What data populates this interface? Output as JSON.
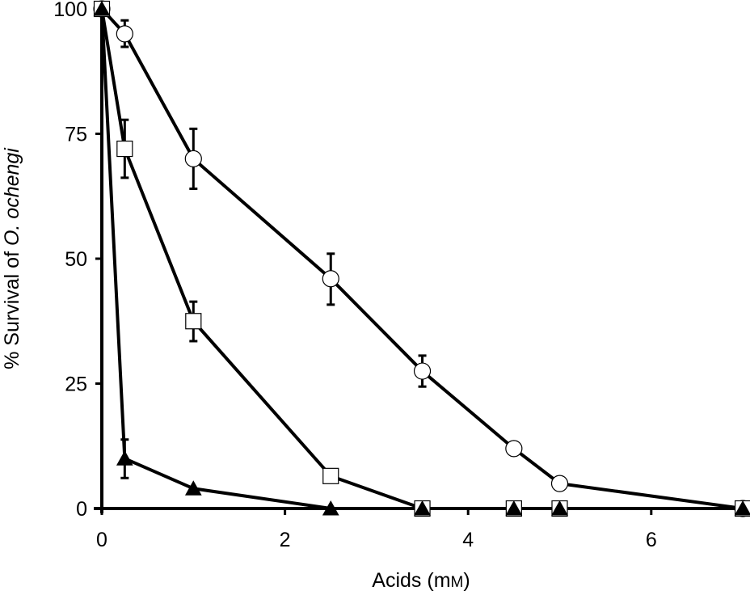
{
  "chart_data": {
    "type": "line",
    "title": "",
    "xlabel": "Acids (mM)",
    "xlabel_parts": {
      "prefix": "Acids (m",
      "smallcap": "M",
      "suffix": ")"
    },
    "ylabel": "% Survival of O. ochengi",
    "ylabel_parts": {
      "prefix": "% Survival of ",
      "italic": "O. ochengi"
    },
    "xlim": [
      0,
      7
    ],
    "ylim": [
      0,
      100
    ],
    "x_ticks": [
      0,
      2,
      4,
      6
    ],
    "x_tick_labels": [
      "0",
      "2",
      "4",
      "6"
    ],
    "y_ticks": [
      0,
      25,
      50,
      75,
      100
    ],
    "y_tick_labels": [
      "0",
      "25",
      "50",
      "75",
      "100"
    ],
    "grid": false,
    "legend": null,
    "series": [
      {
        "name": "circles",
        "marker": "open-circle",
        "x": [
          0,
          0.25,
          1,
          2.5,
          3.5,
          4.5,
          5,
          7
        ],
        "values": [
          100,
          95,
          70,
          46,
          27.5,
          12,
          5,
          0
        ],
        "error_low": [
          null,
          92.4,
          64,
          40.8,
          24.4,
          null,
          null,
          null
        ],
        "error_high": [
          null,
          97.7,
          76,
          51,
          30.6,
          null,
          null,
          null
        ]
      },
      {
        "name": "squares",
        "marker": "open-square",
        "x": [
          0,
          0.25,
          1,
          2.5,
          3.5,
          4.5,
          5,
          7
        ],
        "values": [
          100,
          72,
          37.5,
          6.5,
          0,
          0,
          0,
          0
        ],
        "error_low": [
          null,
          66.2,
          33.5,
          null,
          null,
          null,
          null,
          null
        ],
        "error_high": [
          null,
          77.8,
          41.4,
          null,
          null,
          null,
          null,
          null
        ]
      },
      {
        "name": "triangles",
        "marker": "filled-triangle",
        "x": [
          0,
          0.25,
          1,
          2.5,
          3.5,
          4.5,
          5,
          7
        ],
        "values": [
          100,
          10,
          4,
          0,
          0,
          0,
          0,
          0
        ],
        "error_low": [
          null,
          6.1,
          null,
          null,
          null,
          null,
          null,
          null
        ],
        "error_high": [
          null,
          13.8,
          null,
          null,
          null,
          null,
          null,
          null
        ]
      }
    ]
  },
  "colors": {
    "line": "#000000",
    "marker_fill_open": "#ffffff",
    "marker_fill_solid": "#000000",
    "background": "#ffffff"
  }
}
